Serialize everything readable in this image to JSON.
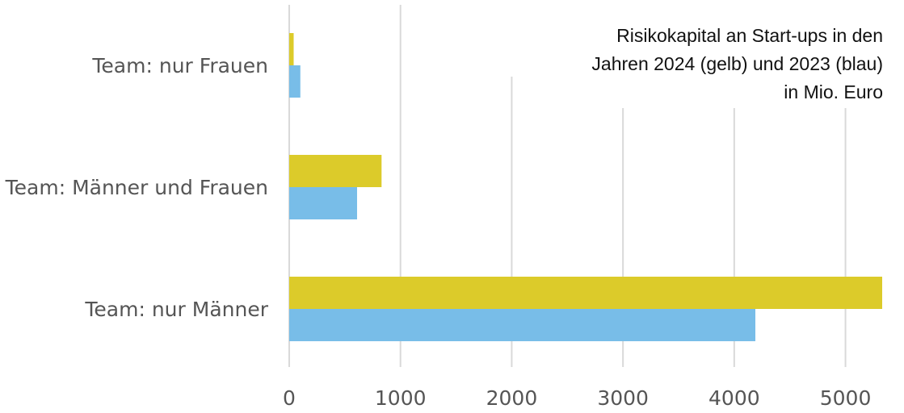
{
  "chart_data": {
    "type": "bar",
    "orientation": "horizontal",
    "title_lines": [
      "Risikokapital an Start-ups in den",
      "Jahren 2024 (gelb) und 2023 (blau)",
      "in Mio. Euro"
    ],
    "categories": [
      "Team: nur Frauen",
      "Team: Männer und Frauen",
      "Team: nur Männer"
    ],
    "series": [
      {
        "values": [
          40,
          830,
          5330
        ],
        "color": "#dccb2a"
      },
      {
        "values": [
          100,
          610,
          4190
        ],
        "color": "#78bde8"
      }
    ],
    "xticks": [
      0,
      1000,
      2000,
      3000,
      4000,
      5000
    ],
    "xlim": [
      0,
      5330
    ],
    "grid": true
  }
}
